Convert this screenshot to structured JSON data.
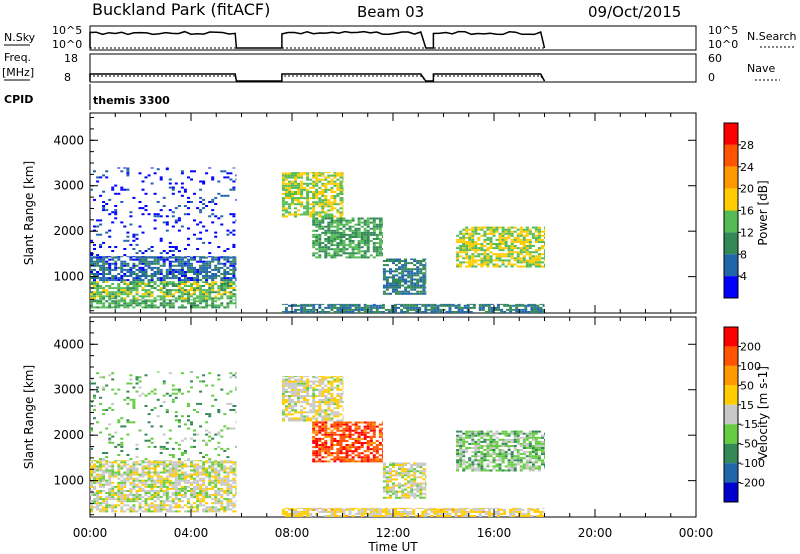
{
  "header": {
    "station": "Buckland Park (fitACF)",
    "beam": "Beam 03",
    "date": "09/Oct/2015"
  },
  "aux_panels": {
    "nsky_label": "N.Sky",
    "nsky_ticks": [
      "10^5",
      "10^0"
    ],
    "nsky_right_ticks": [
      "10^5",
      "10^0"
    ],
    "nsearch_label": "N.Search",
    "freq_label": "Freq.",
    "freq_unit": "[MHz]",
    "freq_ticks": [
      "18",
      "8"
    ],
    "nave_ticks": [
      "60",
      "0"
    ],
    "nave_label": "Nave",
    "cpid_label": "CPID",
    "cpid_value": "themis 3300"
  },
  "colors": {
    "power": [
      "#0000ff",
      "#2266aa",
      "#338855",
      "#55bb55",
      "#ffcc00",
      "#ff9900",
      "#ff5500",
      "#ff0000"
    ],
    "velocity": [
      "#ff0000",
      "#ff5500",
      "#ff9900",
      "#ffcc00",
      "#c8c8c8",
      "#66cc44",
      "#338855",
      "#2266aa",
      "#0000cc"
    ]
  },
  "chart_data": [
    {
      "type": "heatmap",
      "name": "power",
      "xlabel": "Time UT",
      "ylabel": "Slant Range [km]",
      "xlim": [
        0,
        24
      ],
      "ylim": [
        200,
        4600
      ],
      "x_ticks": [
        "00:00",
        "04:00",
        "08:00",
        "12:00",
        "16:00",
        "20:00",
        "00:00"
      ],
      "y_ticks": [
        "1000",
        "2000",
        "3000",
        "4000"
      ],
      "y_tick_values": [
        1000,
        2000,
        3000,
        4000
      ],
      "colorbar": {
        "label": "Power [dB]",
        "ticks": [
          "4",
          "8",
          "12",
          "16",
          "20",
          "24",
          "28"
        ],
        "range": [
          0,
          32
        ]
      },
      "data_gaps_hours": [
        [
          5.8,
          7.6
        ],
        [
          13.3,
          13.6
        ]
      ],
      "echo_regions": [
        {
          "t0": 0.0,
          "t1": 5.8,
          "r0": 300,
          "r1": 500,
          "value": 12
        },
        {
          "t0": 0.0,
          "t1": 5.8,
          "r0": 500,
          "r1": 900,
          "value": 14
        },
        {
          "t0": 0.0,
          "t1": 5.8,
          "r0": 900,
          "r1": 1450,
          "value": 6
        },
        {
          "t0": 0.0,
          "t1": 5.8,
          "r0": 1450,
          "r1": 3400,
          "value": 3
        },
        {
          "t0": 7.6,
          "t1": 10.0,
          "r0": 2300,
          "r1": 3300,
          "value": 16
        },
        {
          "t0": 8.8,
          "t1": 11.6,
          "r0": 1400,
          "r1": 2300,
          "value": 12
        },
        {
          "t0": 11.6,
          "t1": 13.3,
          "r0": 600,
          "r1": 1400,
          "value": 8
        },
        {
          "t0": 7.6,
          "t1": 18.0,
          "r0": 200,
          "r1": 400,
          "value": 8
        },
        {
          "t0": 14.5,
          "t1": 18.0,
          "r0": 1200,
          "r1": 2100,
          "value": 16
        }
      ]
    },
    {
      "type": "heatmap",
      "name": "velocity",
      "xlabel": "Time UT",
      "ylabel": "Slant Range [km]",
      "xlim": [
        0,
        24
      ],
      "ylim": [
        200,
        4600
      ],
      "x_ticks": [
        "00:00",
        "04:00",
        "08:00",
        "12:00",
        "16:00",
        "20:00",
        "00:00"
      ],
      "y_ticks": [
        "1000",
        "2000",
        "3000",
        "4000"
      ],
      "y_tick_values": [
        1000,
        2000,
        3000,
        4000
      ],
      "colorbar": {
        "label": "Velocity [m s-1]",
        "ticks": [
          "200",
          "100",
          "50",
          "15",
          "-15",
          "-50",
          "-100",
          "-200"
        ],
        "range": [
          -300,
          300
        ]
      },
      "data_gaps_hours": [
        [
          5.8,
          7.6
        ],
        [
          13.3,
          13.6
        ]
      ],
      "echo_regions": [
        {
          "t0": 0.0,
          "t1": 5.8,
          "r0": 300,
          "r1": 1450,
          "value": 0
        },
        {
          "t0": 0.0,
          "t1": 5.8,
          "r0": 1450,
          "r1": 3400,
          "value": -80
        },
        {
          "t0": 7.6,
          "t1": 10.0,
          "r0": 2300,
          "r1": 3300,
          "value": 20
        },
        {
          "t0": 8.8,
          "t1": 11.6,
          "r0": 1400,
          "r1": 2300,
          "value": 220
        },
        {
          "t0": 11.6,
          "t1": 13.3,
          "r0": 600,
          "r1": 1400,
          "value": 0
        },
        {
          "t0": 7.6,
          "t1": 18.0,
          "r0": 200,
          "r1": 400,
          "value": 40
        },
        {
          "t0": 14.5,
          "t1": 18.0,
          "r0": 1200,
          "r1": 2100,
          "value": -60
        }
      ]
    }
  ]
}
